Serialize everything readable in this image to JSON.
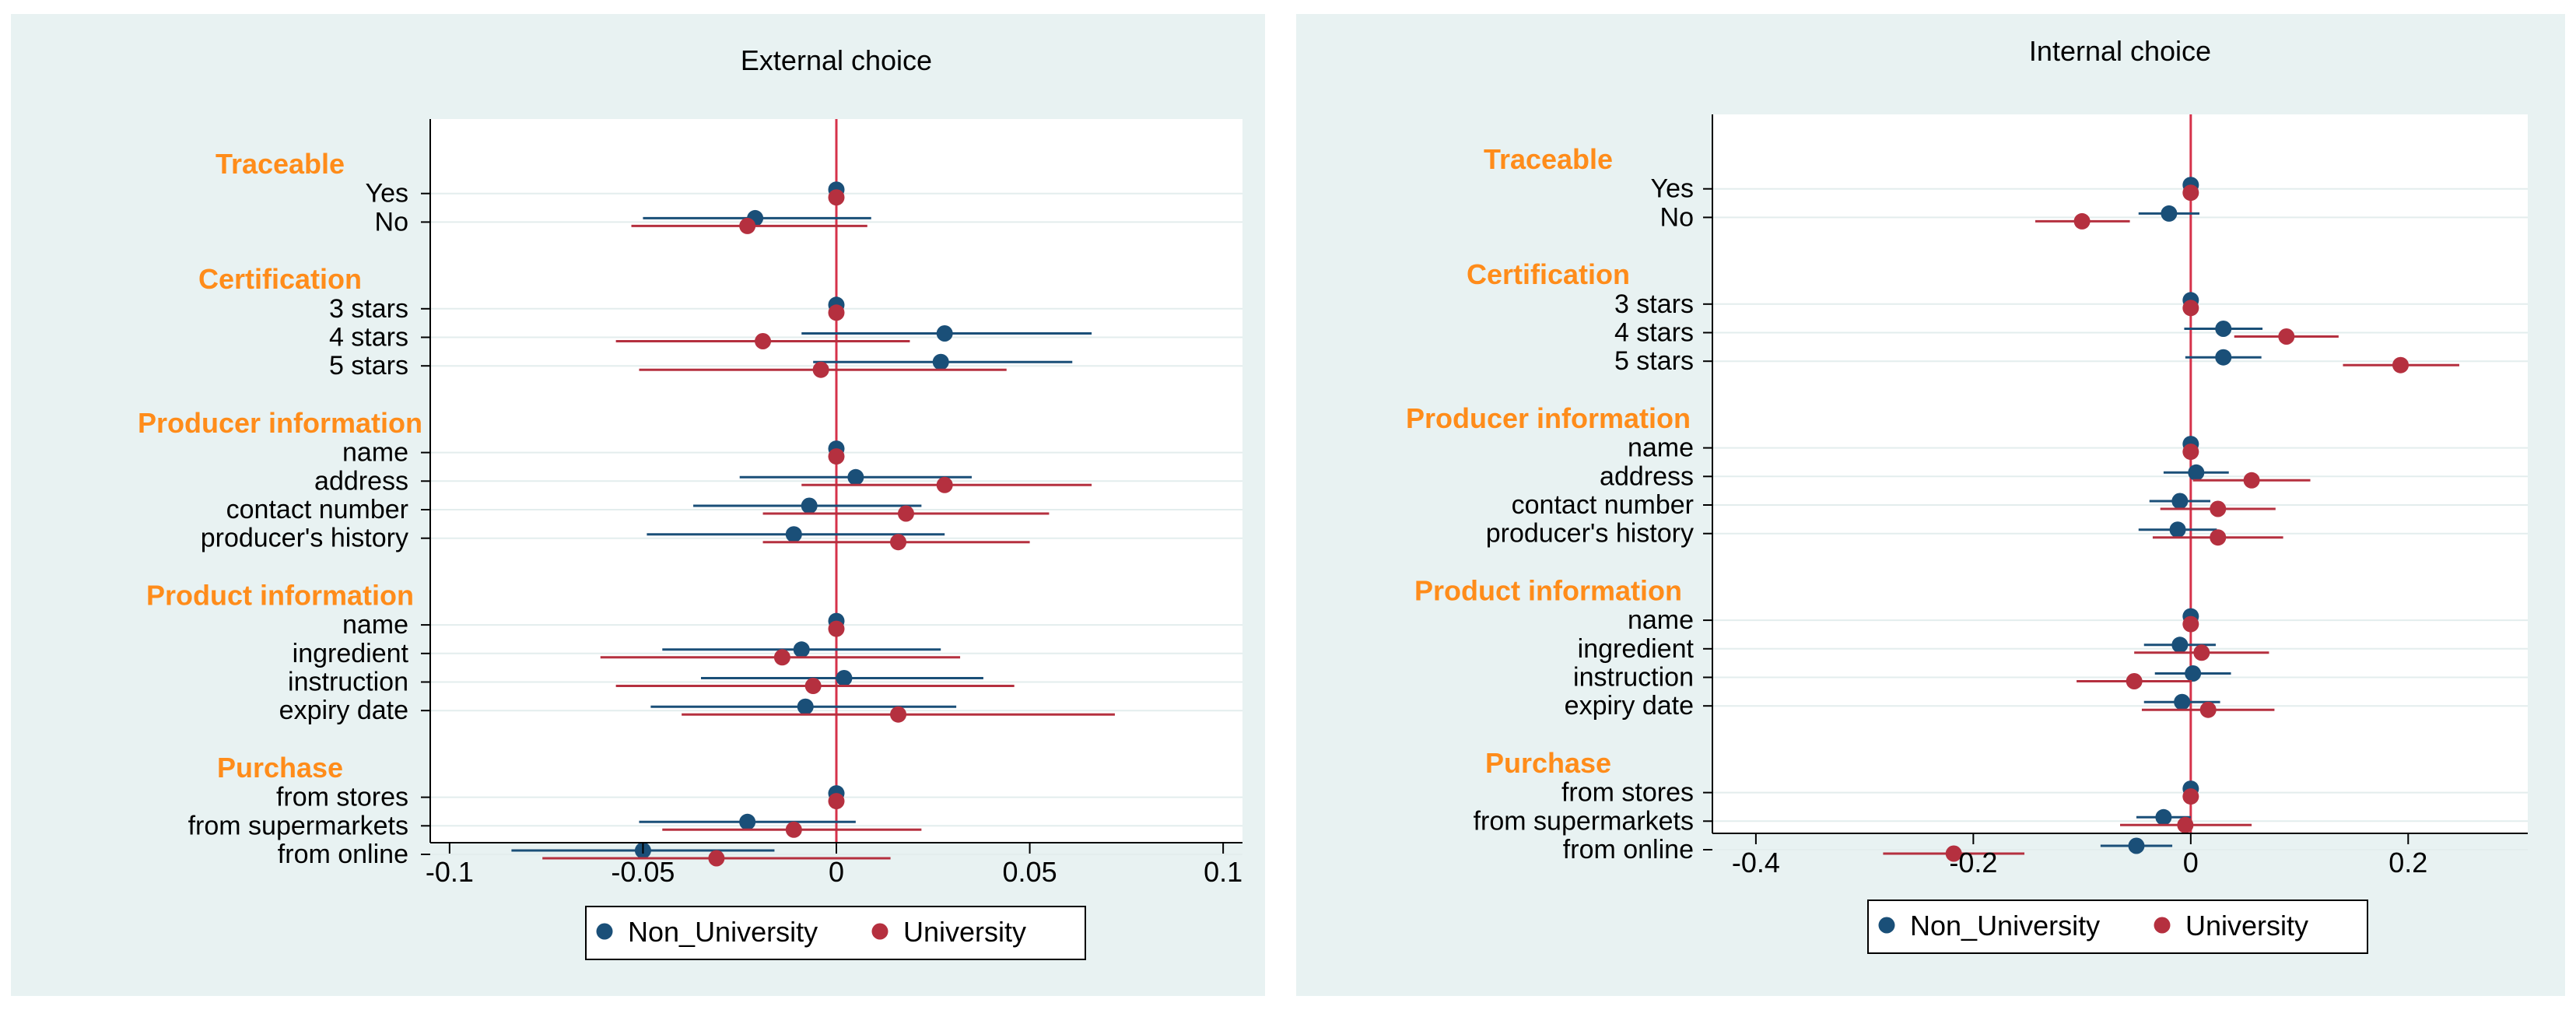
{
  "colors": {
    "panel_bg": "#e8f2f2",
    "plot_bg": "#ffffff",
    "grid": "#e3eded",
    "zero_line": "#d6324a",
    "group_heading": "#ff8c1a",
    "non_university": "#1a4f78",
    "university": "#b5303f",
    "axis": "#000000"
  },
  "chart_data": [
    {
      "type": "scatter",
      "subtype": "coefficient-plot-with-confidence-intervals",
      "title": "External choice",
      "xlabel": "",
      "ylabel": "",
      "xlim": [
        -0.105,
        0.105
      ],
      "xticks": [
        -0.1,
        -0.05,
        0,
        0.05,
        0.1
      ],
      "xtick_labels": [
        "-0.1",
        "-0.05",
        "0",
        "0.05",
        "0.1"
      ],
      "legend": {
        "position": "bottom",
        "entries": [
          "Non_University",
          "University"
        ]
      },
      "rows": [
        {
          "kind": "heading",
          "label": "Traceable"
        },
        {
          "kind": "level",
          "label": "Yes",
          "non_university": {
            "est": 0,
            "lo": 0,
            "hi": 0
          },
          "university": {
            "est": 0,
            "lo": 0,
            "hi": 0
          }
        },
        {
          "kind": "level",
          "label": "No",
          "non_university": {
            "est": -0.021,
            "lo": -0.05,
            "hi": 0.009
          },
          "university": {
            "est": -0.023,
            "lo": -0.053,
            "hi": 0.008
          }
        },
        {
          "kind": "heading",
          "label": "Certification"
        },
        {
          "kind": "level",
          "label": "3 stars",
          "non_university": {
            "est": 0,
            "lo": 0,
            "hi": 0
          },
          "university": {
            "est": 0,
            "lo": 0,
            "hi": 0
          }
        },
        {
          "kind": "level",
          "label": "4 stars",
          "non_university": {
            "est": 0.028,
            "lo": -0.009,
            "hi": 0.066
          },
          "university": {
            "est": -0.019,
            "lo": -0.057,
            "hi": 0.019
          }
        },
        {
          "kind": "level",
          "label": "5 stars",
          "non_university": {
            "est": 0.027,
            "lo": -0.006,
            "hi": 0.061
          },
          "university": {
            "est": -0.004,
            "lo": -0.051,
            "hi": 0.044
          }
        },
        {
          "kind": "heading",
          "label": "Producer information"
        },
        {
          "kind": "level",
          "label": "name",
          "non_university": {
            "est": 0,
            "lo": 0,
            "hi": 0
          },
          "university": {
            "est": 0,
            "lo": 0,
            "hi": 0
          }
        },
        {
          "kind": "level",
          "label": "address",
          "non_university": {
            "est": 0.005,
            "lo": -0.025,
            "hi": 0.035
          },
          "university": {
            "est": 0.028,
            "lo": -0.009,
            "hi": 0.066
          }
        },
        {
          "kind": "level",
          "label": "contact number",
          "non_university": {
            "est": -0.007,
            "lo": -0.037,
            "hi": 0.022
          },
          "university": {
            "est": 0.018,
            "lo": -0.019,
            "hi": 0.055
          }
        },
        {
          "kind": "level",
          "label": "producer's history",
          "non_university": {
            "est": -0.011,
            "lo": -0.049,
            "hi": 0.028
          },
          "university": {
            "est": 0.016,
            "lo": -0.019,
            "hi": 0.05
          }
        },
        {
          "kind": "heading",
          "label": "Product information"
        },
        {
          "kind": "level",
          "label": "name",
          "non_university": {
            "est": 0,
            "lo": 0,
            "hi": 0
          },
          "university": {
            "est": 0,
            "lo": 0,
            "hi": 0
          }
        },
        {
          "kind": "level",
          "label": "ingredient",
          "non_university": {
            "est": -0.009,
            "lo": -0.045,
            "hi": 0.027
          },
          "university": {
            "est": -0.014,
            "lo": -0.061,
            "hi": 0.032
          }
        },
        {
          "kind": "level",
          "label": "instruction",
          "non_university": {
            "est": 0.002,
            "lo": -0.035,
            "hi": 0.038
          },
          "university": {
            "est": -0.006,
            "lo": -0.057,
            "hi": 0.046
          }
        },
        {
          "kind": "level",
          "label": "expiry date",
          "non_university": {
            "est": -0.008,
            "lo": -0.048,
            "hi": 0.031
          },
          "university": {
            "est": 0.016,
            "lo": -0.04,
            "hi": 0.072
          }
        },
        {
          "kind": "heading",
          "label": "Purchase"
        },
        {
          "kind": "level",
          "label": "from stores",
          "non_university": {
            "est": 0,
            "lo": 0,
            "hi": 0
          },
          "university": {
            "est": 0,
            "lo": 0,
            "hi": 0
          }
        },
        {
          "kind": "level",
          "label": "from supermarkets",
          "non_university": {
            "est": -0.023,
            "lo": -0.051,
            "hi": 0.005
          },
          "university": {
            "est": -0.011,
            "lo": -0.045,
            "hi": 0.022
          }
        },
        {
          "kind": "level",
          "label": "from online",
          "non_university": {
            "est": -0.05,
            "lo": -0.084,
            "hi": -0.016
          },
          "university": {
            "est": -0.031,
            "lo": -0.076,
            "hi": 0.014
          }
        }
      ]
    },
    {
      "type": "scatter",
      "subtype": "coefficient-plot-with-confidence-intervals",
      "title": "Internal choice",
      "xlabel": "",
      "ylabel": "",
      "xlim": [
        -0.44,
        0.31
      ],
      "xticks": [
        -0.4,
        -0.2,
        0,
        0.2
      ],
      "xtick_labels": [
        "-0.4",
        "-0.2",
        "0",
        "0.2"
      ],
      "legend": {
        "position": "bottom",
        "entries": [
          "Non_University",
          "University"
        ]
      },
      "rows": [
        {
          "kind": "heading",
          "label": "Traceable"
        },
        {
          "kind": "level",
          "label": "Yes",
          "non_university": {
            "est": 0,
            "lo": 0,
            "hi": 0
          },
          "university": {
            "est": 0,
            "lo": 0,
            "hi": 0
          }
        },
        {
          "kind": "level",
          "label": "No",
          "non_university": {
            "est": -0.02,
            "lo": -0.048,
            "hi": 0.008
          },
          "university": {
            "est": -0.1,
            "lo": -0.143,
            "hi": -0.056
          }
        },
        {
          "kind": "heading",
          "label": "Certification"
        },
        {
          "kind": "level",
          "label": "3 stars",
          "non_university": {
            "est": 0,
            "lo": 0,
            "hi": 0
          },
          "university": {
            "est": 0,
            "lo": 0,
            "hi": 0
          }
        },
        {
          "kind": "level",
          "label": "4 stars",
          "non_university": {
            "est": 0.03,
            "lo": -0.006,
            "hi": 0.066
          },
          "university": {
            "est": 0.088,
            "lo": 0.04,
            "hi": 0.136
          }
        },
        {
          "kind": "level",
          "label": "5 stars",
          "non_university": {
            "est": 0.03,
            "lo": -0.005,
            "hi": 0.065
          },
          "university": {
            "est": 0.193,
            "lo": 0.14,
            "hi": 0.247
          }
        },
        {
          "kind": "heading",
          "label": "Producer information"
        },
        {
          "kind": "level",
          "label": "name",
          "non_university": {
            "est": 0,
            "lo": 0,
            "hi": 0
          },
          "university": {
            "est": 0,
            "lo": 0,
            "hi": 0
          }
        },
        {
          "kind": "level",
          "label": "address",
          "non_university": {
            "est": 0.005,
            "lo": -0.025,
            "hi": 0.035
          },
          "university": {
            "est": 0.056,
            "lo": 0.002,
            "hi": 0.11
          }
        },
        {
          "kind": "level",
          "label": "contact number",
          "non_university": {
            "est": -0.01,
            "lo": -0.038,
            "hi": 0.018
          },
          "university": {
            "est": 0.025,
            "lo": -0.028,
            "hi": 0.078
          }
        },
        {
          "kind": "level",
          "label": "producer's history",
          "non_university": {
            "est": -0.012,
            "lo": -0.048,
            "hi": 0.024
          },
          "university": {
            "est": 0.025,
            "lo": -0.035,
            "hi": 0.085
          }
        },
        {
          "kind": "heading",
          "label": "Product information"
        },
        {
          "kind": "level",
          "label": "name",
          "non_university": {
            "est": 0,
            "lo": 0,
            "hi": 0
          },
          "university": {
            "est": 0,
            "lo": 0,
            "hi": 0
          }
        },
        {
          "kind": "level",
          "label": "ingredient",
          "non_university": {
            "est": -0.01,
            "lo": -0.043,
            "hi": 0.023
          },
          "university": {
            "est": 0.01,
            "lo": -0.052,
            "hi": 0.072
          }
        },
        {
          "kind": "level",
          "label": "instruction",
          "non_university": {
            "est": 0.002,
            "lo": -0.033,
            "hi": 0.037
          },
          "university": {
            "est": -0.052,
            "lo": -0.105,
            "hi": 0.001
          }
        },
        {
          "kind": "level",
          "label": "expiry date",
          "non_university": {
            "est": -0.008,
            "lo": -0.043,
            "hi": 0.027
          },
          "university": {
            "est": 0.016,
            "lo": -0.045,
            "hi": 0.077
          }
        },
        {
          "kind": "heading",
          "label": "Purchase"
        },
        {
          "kind": "level",
          "label": "from stores",
          "non_university": {
            "est": 0,
            "lo": 0,
            "hi": 0
          },
          "university": {
            "est": 0,
            "lo": 0,
            "hi": 0
          }
        },
        {
          "kind": "level",
          "label": "from supermarkets",
          "non_university": {
            "est": -0.025,
            "lo": -0.05,
            "hi": 0
          },
          "university": {
            "est": -0.005,
            "lo": -0.065,
            "hi": 0.056
          }
        },
        {
          "kind": "level",
          "label": "from online",
          "non_university": {
            "est": -0.05,
            "lo": -0.083,
            "hi": -0.017
          },
          "university": {
            "est": -0.218,
            "lo": -0.283,
            "hi": -0.153
          }
        }
      ]
    }
  ]
}
